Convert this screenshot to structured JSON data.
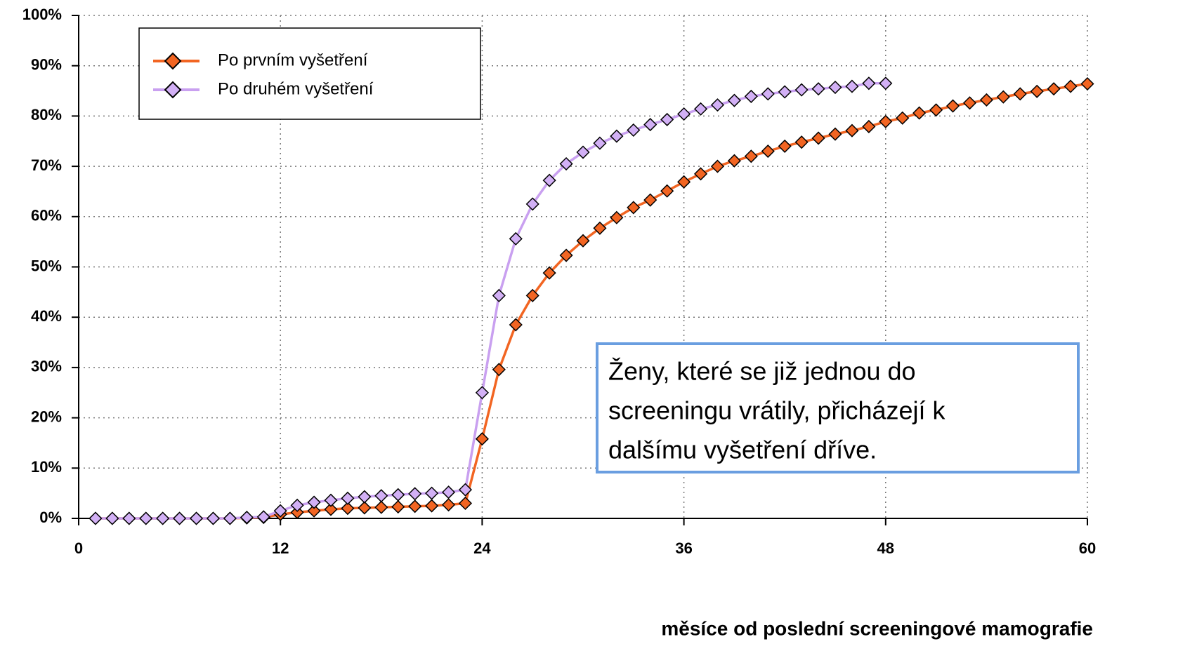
{
  "chart_data": {
    "type": "line",
    "x_label": "měsíce od poslední screeningové mamografie",
    "annotation": [
      "Ženy, které se již jednou do",
      "screeningu vrátily, přicházejí k",
      "dalšímu vyšetření dříve."
    ],
    "xlim": [
      0,
      60
    ],
    "xticks": [
      0,
      12,
      24,
      36,
      48,
      60
    ],
    "ylim": [
      0,
      100
    ],
    "yticks": [
      {
        "value": 0,
        "label": "0%"
      },
      {
        "value": 10,
        "label": "10%"
      },
      {
        "value": 20,
        "label": "20%"
      },
      {
        "value": 30,
        "label": "30%"
      },
      {
        "value": 40,
        "label": "40%"
      },
      {
        "value": 50,
        "label": "50%"
      },
      {
        "value": 60,
        "label": "60%"
      },
      {
        "value": 70,
        "label": "70%"
      },
      {
        "value": 80,
        "label": "80%"
      },
      {
        "value": 90,
        "label": "90%"
      },
      {
        "value": 100,
        "label": "100%"
      }
    ],
    "grid": true,
    "legend": "upper left",
    "series": [
      {
        "name": "Po prvním vyšetření",
        "color": "#f26522",
        "marker_color": "#f26522",
        "x": [
          1,
          2,
          3,
          4,
          5,
          6,
          7,
          8,
          9,
          10,
          11,
          12,
          13,
          14,
          15,
          16,
          17,
          18,
          19,
          20,
          21,
          22,
          23,
          24,
          25,
          26,
          27,
          28,
          29,
          30,
          31,
          32,
          33,
          34,
          35,
          36,
          37,
          38,
          39,
          40,
          41,
          42,
          43,
          44,
          45,
          46,
          47,
          48,
          49,
          50,
          51,
          52,
          53,
          54,
          55,
          56,
          57,
          58,
          59,
          60
        ],
        "values": [
          0,
          0,
          0,
          0,
          0,
          0,
          0,
          0,
          0,
          0.1,
          0.2,
          0.8,
          1.2,
          1.5,
          1.8,
          2.0,
          2.1,
          2.2,
          2.3,
          2.4,
          2.5,
          2.7,
          3.0,
          15.8,
          29.6,
          38.5,
          44.3,
          48.8,
          52.3,
          55.2,
          57.7,
          59.8,
          61.8,
          63.3,
          65.1,
          66.9,
          68.5,
          70.0,
          71.1,
          72.0,
          73.0,
          74.0,
          74.8,
          75.6,
          76.4,
          77.1,
          77.9,
          78.9,
          79.6,
          80.6,
          81.2,
          82.0,
          82.6,
          83.2,
          83.8,
          84.4,
          84.9,
          85.4,
          85.9,
          86.4
        ]
      },
      {
        "name": "Po druhém vyšetření",
        "color": "#c9a0f0",
        "marker_color": "#d2b0f5",
        "x": [
          1,
          2,
          3,
          4,
          5,
          6,
          7,
          8,
          9,
          10,
          11,
          12,
          13,
          14,
          15,
          16,
          17,
          18,
          19,
          20,
          21,
          22,
          23,
          24,
          25,
          26,
          27,
          28,
          29,
          30,
          31,
          32,
          33,
          34,
          35,
          36,
          37,
          38,
          39,
          40,
          41,
          42,
          43,
          44,
          45,
          46,
          47,
          48
        ],
        "values": [
          0,
          0,
          0,
          0,
          0,
          0,
          0,
          0,
          0,
          0.2,
          0.3,
          1.5,
          2.6,
          3.2,
          3.6,
          4.0,
          4.3,
          4.5,
          4.7,
          4.9,
          5.0,
          5.2,
          5.7,
          25.0,
          44.3,
          55.6,
          62.5,
          67.2,
          70.5,
          72.8,
          74.6,
          76.0,
          77.2,
          78.3,
          79.3,
          80.4,
          81.4,
          82.2,
          83.1,
          83.9,
          84.4,
          84.8,
          85.2,
          85.4,
          85.7,
          85.9,
          86.5,
          86.5
        ]
      }
    ]
  }
}
